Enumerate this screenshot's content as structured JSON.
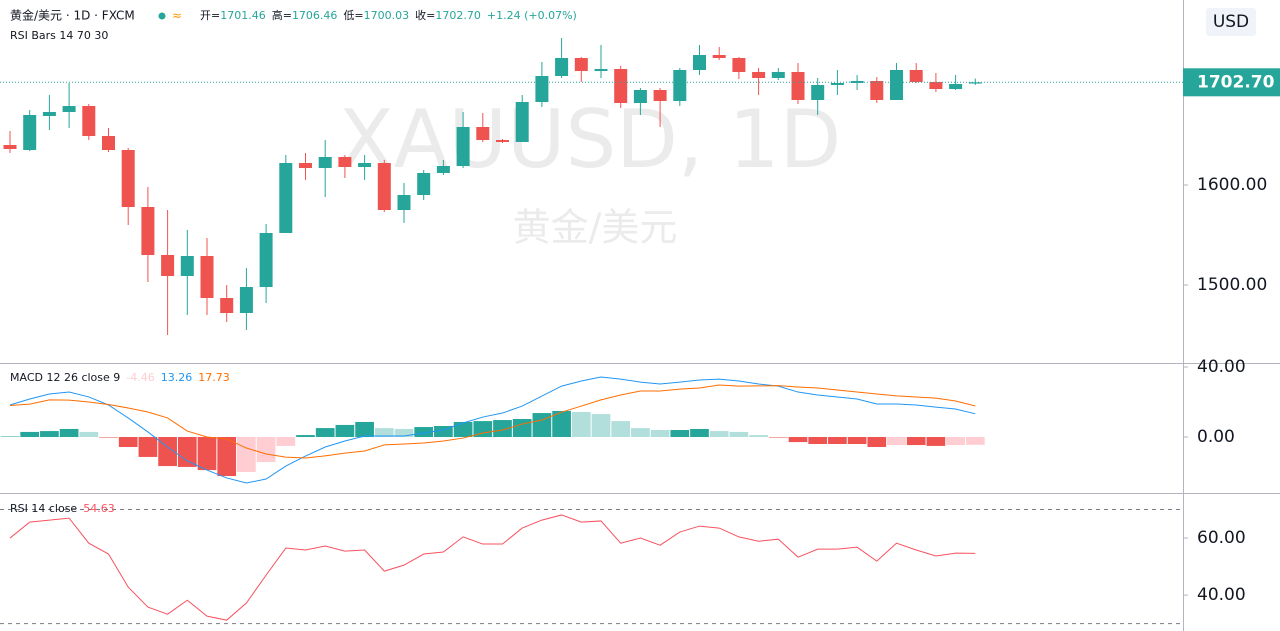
{
  "chart_data": [
    {
      "type": "candlestick",
      "title": "黄金/美元 · 1D · FXCM",
      "ohlc_header": [
        {
          "label": "开=",
          "value": "1701.46"
        },
        {
          "label": "高=",
          "value": "1706.46"
        },
        {
          "label": "低=",
          "value": "1700.03"
        },
        {
          "label": "收=",
          "value": "1702.70"
        }
      ],
      "change": "+1.24 (+0.07%)",
      "indicator": "RSI Bars 14 70 30",
      "watermark": [
        "XAUUSD, 1D",
        "黄金/美元"
      ],
      "currency": "USD",
      "open": [
        1640,
        1635,
        1669,
        1673,
        1679,
        1649,
        1635,
        1578,
        1530,
        1509,
        1529,
        1487,
        1472,
        1498,
        1552,
        1622,
        1617,
        1628,
        1618,
        1622,
        1575,
        1590,
        1612,
        1619,
        1658,
        1645,
        1643,
        1683,
        1709,
        1727,
        1714,
        1716,
        1682,
        1695,
        1684,
        1715,
        1730,
        1727,
        1713,
        1707,
        1713,
        1685,
        1700,
        1702,
        1704,
        1685,
        1715,
        1703,
        1696,
        1701.46
      ],
      "high": [
        1654,
        1675,
        1690,
        1702,
        1681,
        1657,
        1637,
        1598,
        1575,
        1555,
        1547,
        1500,
        1517,
        1561,
        1630,
        1632,
        1645,
        1630,
        1630,
        1625,
        1602,
        1615,
        1625,
        1673,
        1672,
        1646,
        1690,
        1723,
        1747,
        1728,
        1740,
        1719,
        1697,
        1697,
        1717,
        1740,
        1738,
        1728,
        1717,
        1717,
        1722,
        1707,
        1715,
        1710,
        1708,
        1722,
        1722,
        1712,
        1710,
        1706.46
      ],
      "low": [
        1632,
        1634,
        1655,
        1657,
        1645,
        1633,
        1560,
        1503,
        1450,
        1470,
        1470,
        1463,
        1455,
        1482,
        1552,
        1605,
        1588,
        1607,
        1605,
        1573,
        1562,
        1585,
        1610,
        1617,
        1643,
        1642,
        1643,
        1678,
        1707,
        1703,
        1707,
        1677,
        1670,
        1658,
        1679,
        1710,
        1725,
        1706,
        1690,
        1705,
        1681,
        1670,
        1690,
        1695,
        1682,
        1685,
        1702,
        1693,
        1695,
        1700.03
      ],
      "close": [
        1636,
        1670,
        1673,
        1679,
        1649,
        1635,
        1578,
        1530,
        1509,
        1529,
        1487,
        1472,
        1498,
        1552,
        1622,
        1617,
        1628,
        1618,
        1622,
        1575,
        1590,
        1612,
        1619,
        1658,
        1645,
        1643,
        1683,
        1709,
        1727,
        1714,
        1716,
        1682,
        1695,
        1684,
        1715,
        1730,
        1727,
        1713,
        1707,
        1713,
        1685,
        1700,
        1702,
        1704,
        1685,
        1715,
        1703,
        1696,
        1701,
        1702.7
      ],
      "up_color": "#26a69a",
      "down_color": "#ef5350",
      "ylim": [
        1422,
        1785
      ],
      "yticks": [
        {
          "value": 1500,
          "label": "1500.00"
        },
        {
          "value": 1600,
          "label": "1600.00"
        }
      ],
      "last_price": {
        "value": 1702.7,
        "label": "1702.70"
      }
    },
    {
      "type": "macd",
      "title": "MACD 12 26 close 9",
      "histogram": {
        "values": [
          0.3,
          2.9,
          3.4,
          4.6,
          2.9,
          -0.3,
          -5.7,
          -11.4,
          -16.6,
          -17.1,
          -18.9,
          -22.3,
          -20,
          -14.3,
          -5.1,
          1.1,
          5.1,
          6.9,
          8.6,
          5.1,
          4.6,
          5.7,
          6.3,
          8.6,
          9.1,
          9.7,
          10.3,
          13.7,
          14.9,
          14.3,
          13.1,
          9.1,
          5.1,
          4,
          4,
          4.6,
          3.4,
          2.9,
          1.1,
          -0.3,
          -2.9,
          -4,
          -4,
          -4,
          -5.7,
          -4.6,
          -4.6,
          -5.1,
          -4.6,
          -4.46
        ],
        "value_label": "-4.46",
        "colors": [
          "#26a69a",
          "#b2dfdb",
          "#ffcdd2",
          "#ef5350"
        ]
      },
      "macd": {
        "values": [
          18.3,
          21.7,
          24.6,
          25.7,
          22.9,
          18.3,
          10.9,
          2.9,
          -5.7,
          -13.7,
          -18.9,
          -23.4,
          -26.3,
          -24,
          -16.6,
          -10.9,
          -5.7,
          -2.3,
          0.6,
          0.6,
          0.6,
          2.3,
          4,
          8,
          11.4,
          13.7,
          17.7,
          23.4,
          29.1,
          32,
          34.3,
          33.1,
          31.4,
          30.3,
          31.4,
          32.6,
          33.1,
          32,
          30.3,
          29.1,
          25.7,
          24,
          22.9,
          21.7,
          18.9,
          18.9,
          18.3,
          17.1,
          16,
          13.26
        ],
        "value_label": "13.26",
        "color": "#2196f3"
      },
      "signal": {
        "values": [
          18,
          18.8,
          21.2,
          21.1,
          20,
          18.6,
          16.6,
          14.3,
          10.9,
          3.4,
          0,
          -1.1,
          -6.3,
          -9.7,
          -11.5,
          -12,
          -10.8,
          -9.2,
          -8,
          -4.5,
          -4,
          -3.4,
          -2.3,
          -0.6,
          2.3,
          4,
          7.4,
          9.7,
          14.2,
          17.7,
          21.2,
          24,
          26.3,
          26.3,
          27.4,
          28,
          29.7,
          29.1,
          29.2,
          29.4,
          28.6,
          28,
          26.9,
          25.7,
          24.6,
          23.5,
          22.9,
          22.2,
          20.6,
          17.73
        ],
        "value_label": "17.73",
        "color": "#ff6d00"
      },
      "ylim": [
        -32,
        42.3
      ],
      "yticks": [
        {
          "value": 0,
          "label": "0.00"
        },
        {
          "value": 40,
          "label": "40.00"
        }
      ]
    },
    {
      "type": "rsi",
      "title": "RSI 14 close",
      "values": [
        60,
        65.6,
        66.3,
        67,
        58.2,
        54.4,
        42.8,
        35.8,
        33.3,
        38.2,
        32.6,
        31.2,
        37.2,
        47,
        56.5,
        55.8,
        57.2,
        55.4,
        55.8,
        48.4,
        50.5,
        54.4,
        55.1,
        60.4,
        57.9,
        57.9,
        63.5,
        66.3,
        68.1,
        65.6,
        66,
        58.2,
        60,
        57.5,
        62.1,
        64.2,
        63.5,
        60.4,
        58.9,
        59.6,
        53.3,
        56.1,
        56.1,
        56.8,
        51.9,
        58.2,
        55.8,
        53.7,
        54.7,
        54.63
      ],
      "value_label": "54.63",
      "color": "#f7525f",
      "levels": [
        70,
        30
      ],
      "ylim": [
        27.4,
        75.8
      ],
      "yticks": [
        {
          "value": 40,
          "label": "40.00"
        },
        {
          "value": 60,
          "label": "60.00"
        }
      ]
    }
  ]
}
